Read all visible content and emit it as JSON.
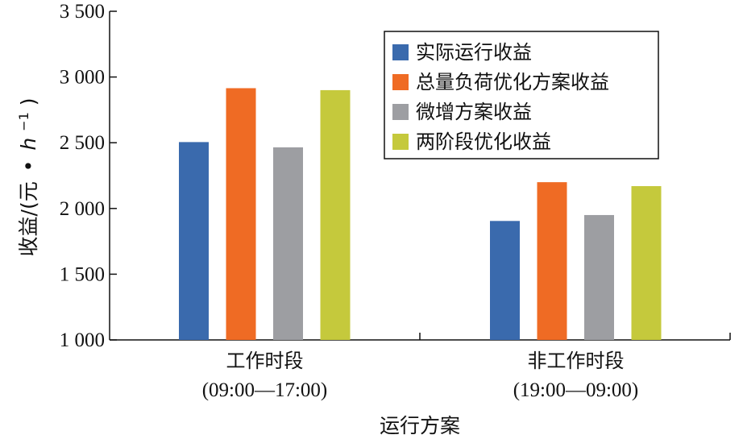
{
  "chart_data": {
    "type": "bar",
    "categories": [
      "工作时段",
      "非工作时段"
    ],
    "category_ranges": [
      "(09:00—17:00)",
      "(19:00—09:00)"
    ],
    "series": [
      {
        "name": "实际运行收益",
        "color": "#3a6aad",
        "values": [
          2505,
          1905
        ]
      },
      {
        "name": "总量负荷优化方案收益",
        "color": "#ef6b24",
        "values": [
          2915,
          2200
        ]
      },
      {
        "name": "微增方案收益",
        "color": "#9d9ea2",
        "values": [
          2465,
          1950
        ]
      },
      {
        "name": "两阶段优化收益",
        "color": "#c5c93c",
        "values": [
          2900,
          2170
        ]
      }
    ],
    "xlabel": "运行方案",
    "ylabel": {
      "main": "收益/(元",
      "sep": "•",
      "unit": "h",
      "exp": "−1",
      "close": ")"
    },
    "ylim": [
      1000,
      3500
    ],
    "yticks": [
      1000,
      1500,
      2000,
      2500,
      3000,
      3500
    ],
    "ytick_labels": [
      "1 000",
      "1 500",
      "2 000",
      "2 500",
      "3 000",
      "3 500"
    ],
    "grid": false,
    "legend_position": "top-right"
  }
}
